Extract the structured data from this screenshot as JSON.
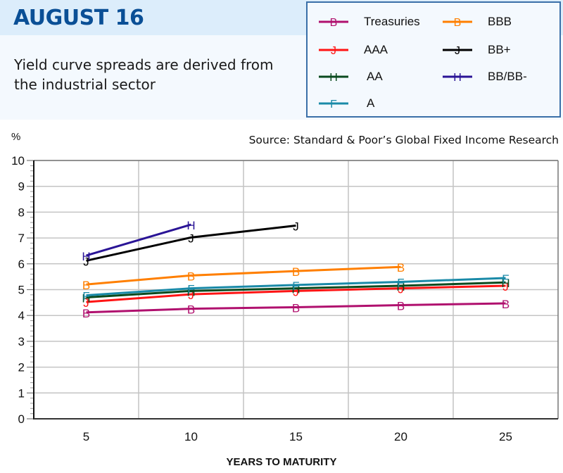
{
  "header": {
    "title": "AUGUST 16",
    "subtitle": "Yield curve spreads are derived from the industrial sector"
  },
  "source": "Source: Standard & Poor’s Global Fixed Income Research",
  "y_unit": "%",
  "x_title": "YEARS TO MATURITY",
  "legend": [
    {
      "label": "Treasuries",
      "color": "#b0106e",
      "marker": "B"
    },
    {
      "label": "BBB",
      "color": "#ff7f00",
      "marker": "B"
    },
    {
      "label": "AAA",
      "color": "#ff1414",
      "marker": "J"
    },
    {
      "label": "BB+",
      "color": "#000000",
      "marker": "J"
    },
    {
      "label": "AA",
      "color": "#0a4a1e",
      "marker": "H"
    },
    {
      "label": "BB/BB-",
      "color": "#2a1496",
      "marker": "H"
    },
    {
      "label": "A",
      "color": "#1a8aa8",
      "marker": "F"
    }
  ],
  "chart_data": {
    "type": "line",
    "title": "AUGUST 16",
    "subtitle": "Yield curve spreads are derived from the industrial sector",
    "xlabel": "YEARS TO MATURITY",
    "ylabel": "%",
    "x": [
      5,
      10,
      15,
      20,
      25
    ],
    "xlim": [
      2.5,
      27.5
    ],
    "ylim": [
      0,
      10
    ],
    "yticks": [
      0,
      1,
      2,
      3,
      4,
      5,
      6,
      7,
      8,
      9,
      10
    ],
    "xticks": [
      5,
      10,
      15,
      20,
      25
    ],
    "grid": true,
    "legend_position": "top-right",
    "annotations": [
      "Source: Standard & Poor’s Global Fixed Income Research"
    ],
    "series": [
      {
        "name": "Treasuries",
        "color": "#b0106e",
        "marker": "B",
        "values": [
          4.12,
          4.26,
          4.32,
          4.4,
          4.47
        ]
      },
      {
        "name": "AAA",
        "color": "#ff1414",
        "marker": "J",
        "values": [
          4.52,
          4.82,
          4.95,
          5.05,
          5.15
        ]
      },
      {
        "name": "AA",
        "color": "#0a4a1e",
        "marker": "H",
        "values": [
          4.7,
          4.95,
          5.05,
          5.15,
          5.28
        ]
      },
      {
        "name": "A",
        "color": "#1a8aa8",
        "marker": "F",
        "values": [
          4.78,
          5.05,
          5.18,
          5.3,
          5.45
        ]
      },
      {
        "name": "BBB",
        "color": "#ff7f00",
        "marker": "B",
        "values": [
          5.2,
          5.55,
          5.72,
          5.88,
          null
        ]
      },
      {
        "name": "BB+",
        "color": "#000000",
        "marker": "J",
        "values": [
          6.12,
          7.02,
          7.48,
          null,
          null
        ]
      },
      {
        "name": "BB/BB-",
        "color": "#2a1496",
        "marker": "H",
        "values": [
          6.32,
          7.52,
          null,
          null,
          null
        ]
      }
    ]
  }
}
